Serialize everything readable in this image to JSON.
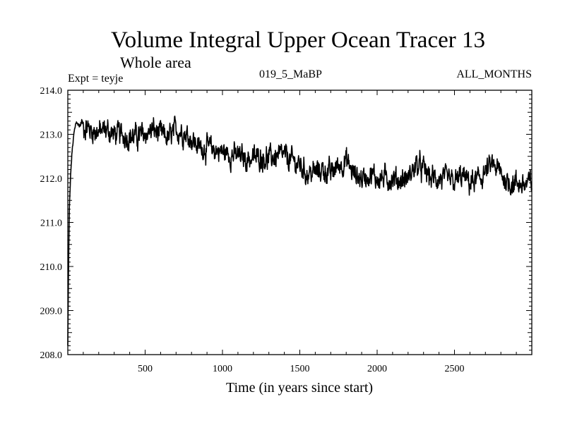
{
  "chart_data": {
    "type": "line",
    "title": "Volume Integral Upper Ocean Tracer 13",
    "subtitle": "Whole area",
    "experiment": "Expt = teyje",
    "run_label": "019_5_MaBP",
    "months_label": "ALL_MONTHS",
    "xlabel": "Time (in years since start)",
    "ylabel": "",
    "xlim": [
      0,
      3000
    ],
    "ylim": [
      208.0,
      214.0
    ],
    "x_ticks": [
      500,
      1000,
      1500,
      2000,
      2500
    ],
    "x_tick_labels": [
      "500",
      "1000",
      "1500",
      "2000",
      "2500"
    ],
    "y_ticks": [
      208.0,
      209.0,
      210.0,
      211.0,
      212.0,
      213.0,
      214.0
    ],
    "y_tick_labels": [
      "208.0",
      "209.0",
      "210.0",
      "211.0",
      "212.0",
      "213.0",
      "214.0"
    ],
    "grid": false,
    "series": [
      {
        "name": "Tracer 13",
        "color": "#000000",
        "x": [
          0,
          5,
          10,
          20,
          30,
          40,
          50,
          60,
          70,
          80,
          90,
          100,
          150,
          200,
          250,
          300,
          350,
          400,
          450,
          500,
          550,
          600,
          650,
          700,
          750,
          800,
          850,
          900,
          950,
          1000,
          1050,
          1100,
          1150,
          1200,
          1250,
          1300,
          1350,
          1400,
          1450,
          1500,
          1550,
          1600,
          1650,
          1700,
          1750,
          1800,
          1850,
          1900,
          1950,
          2000,
          2050,
          2100,
          2150,
          2200,
          2250,
          2300,
          2350,
          2400,
          2450,
          2500,
          2550,
          2600,
          2650,
          2700,
          2750,
          2800,
          2850,
          2900,
          2950,
          3000
        ],
        "values": [
          208.2,
          210.0,
          211.3,
          212.2,
          212.7,
          213.0,
          213.2,
          213.3,
          213.2,
          213.2,
          213.3,
          213.2,
          213.1,
          213.05,
          213.1,
          213.0,
          213.0,
          212.95,
          212.95,
          213.0,
          213.1,
          213.0,
          212.9,
          213.1,
          213.05,
          212.9,
          212.7,
          212.7,
          212.65,
          212.6,
          212.55,
          212.5,
          212.45,
          212.45,
          212.5,
          212.45,
          212.5,
          212.5,
          212.4,
          212.3,
          212.1,
          212.15,
          212.2,
          212.1,
          212.3,
          212.4,
          212.1,
          212.0,
          212.1,
          212.0,
          212.0,
          212.0,
          211.95,
          212.0,
          212.3,
          212.2,
          212.0,
          212.0,
          211.95,
          211.9,
          212.05,
          211.9,
          211.95,
          212.15,
          212.3,
          212.1,
          211.9,
          211.9,
          211.85,
          211.9
        ]
      }
    ]
  }
}
